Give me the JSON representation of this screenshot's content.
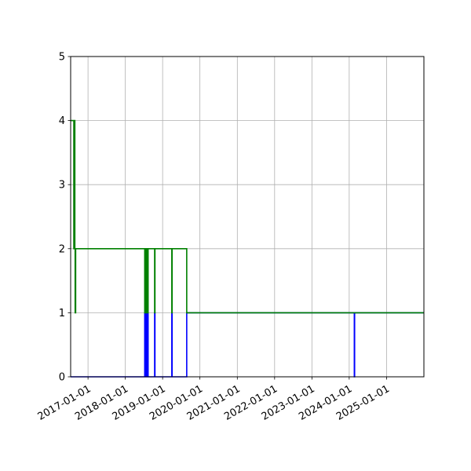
{
  "chart_data": {
    "type": "line",
    "title": "",
    "xlabel": "",
    "ylabel": "",
    "xlim": [
      "2016-07-15",
      "2026-01-01"
    ],
    "ylim": [
      0,
      5
    ],
    "grid": true,
    "legend": "none",
    "x_ticks": [
      "2017-01-01",
      "2018-01-01",
      "2019-01-01",
      "2020-01-01",
      "2021-01-01",
      "2022-01-01",
      "2023-01-01",
      "2024-01-01",
      "2025-01-01"
    ],
    "y_ticks": [
      "0",
      "1",
      "2",
      "3",
      "4",
      "5"
    ],
    "series": [
      {
        "color": "#0000ff",
        "step": "post",
        "points": [
          [
            "2016-07-15",
            0
          ],
          [
            "2018-07-10",
            1
          ],
          [
            "2018-07-13",
            0
          ],
          [
            "2018-07-16",
            1
          ],
          [
            "2018-07-19",
            0
          ],
          [
            "2018-07-22",
            1
          ],
          [
            "2018-07-25",
            0
          ],
          [
            "2018-07-28",
            1
          ],
          [
            "2018-07-31",
            0
          ],
          [
            "2018-08-03",
            1
          ],
          [
            "2018-08-06",
            0
          ],
          [
            "2018-08-09",
            1
          ],
          [
            "2018-08-12",
            0
          ],
          [
            "2018-10-15",
            1
          ],
          [
            "2018-10-18",
            0
          ],
          [
            "2019-04-01",
            1
          ],
          [
            "2019-04-04",
            0
          ],
          [
            "2019-08-25",
            1
          ],
          [
            "2024-02-20",
            0
          ],
          [
            "2024-02-23",
            1
          ],
          [
            "2026-01-01",
            1
          ]
        ]
      },
      {
        "color": "#008000",
        "step": "post",
        "points": [
          [
            "2016-07-15",
            4
          ],
          [
            "2016-08-15",
            2
          ],
          [
            "2016-08-16",
            4
          ],
          [
            "2016-08-25",
            2
          ],
          [
            "2016-08-28",
            1
          ],
          [
            "2016-09-02",
            2
          ],
          [
            "2018-07-10",
            1
          ],
          [
            "2018-07-13",
            2
          ],
          [
            "2018-07-16",
            1
          ],
          [
            "2018-07-19",
            2
          ],
          [
            "2018-07-22",
            1
          ],
          [
            "2018-07-25",
            2
          ],
          [
            "2018-07-28",
            1
          ],
          [
            "2018-07-31",
            2
          ],
          [
            "2018-08-03",
            1
          ],
          [
            "2018-08-06",
            2
          ],
          [
            "2018-08-09",
            1
          ],
          [
            "2018-08-12",
            2
          ],
          [
            "2018-10-15",
            1
          ],
          [
            "2018-10-18",
            2
          ],
          [
            "2019-04-01",
            1
          ],
          [
            "2019-04-04",
            2
          ],
          [
            "2019-08-25",
            1
          ],
          [
            "2026-01-01",
            1
          ]
        ]
      }
    ]
  }
}
